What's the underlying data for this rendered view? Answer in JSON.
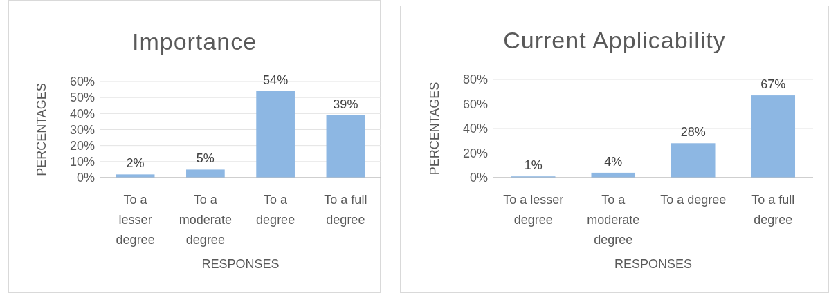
{
  "chart_data": [
    {
      "type": "bar",
      "title": "Importance",
      "xlabel": "RESPONSES",
      "ylabel": "PERCENTAGES",
      "categories": [
        "To a lesser degree",
        "To a moderate degree",
        "To a degree",
        "To a full degree"
      ],
      "values": [
        2,
        5,
        54,
        39
      ],
      "value_labels": [
        "2%",
        "5%",
        "54%",
        "39%"
      ],
      "color": "#8db7e3",
      "ylim": [
        0,
        60
      ],
      "yticks": [
        {
          "value": 0,
          "label": "0%"
        },
        {
          "value": 10,
          "label": "10%"
        },
        {
          "value": 20,
          "label": "20%"
        },
        {
          "value": 30,
          "label": "30%"
        },
        {
          "value": 40,
          "label": "40%"
        },
        {
          "value": 50,
          "label": "50%"
        },
        {
          "value": 60,
          "label": "60%"
        }
      ],
      "grid": "y"
    },
    {
      "type": "bar",
      "title": "Current Applicability",
      "xlabel": "RESPONSES",
      "ylabel": "PERCENTAGES",
      "categories": [
        "To a lesser degree",
        "To a moderate degree",
        "To a degree",
        "To a full degree"
      ],
      "values": [
        1,
        4,
        28,
        67
      ],
      "value_labels": [
        "1%",
        "4%",
        "28%",
        "67%"
      ],
      "color": "#8db7e3",
      "ylim": [
        0,
        80
      ],
      "yticks": [
        {
          "value": 0,
          "label": "0%"
        },
        {
          "value": 20,
          "label": "20%"
        },
        {
          "value": 40,
          "label": "40%"
        },
        {
          "value": 60,
          "label": "60%"
        },
        {
          "value": 80,
          "label": "80%"
        }
      ],
      "grid": "y"
    }
  ]
}
